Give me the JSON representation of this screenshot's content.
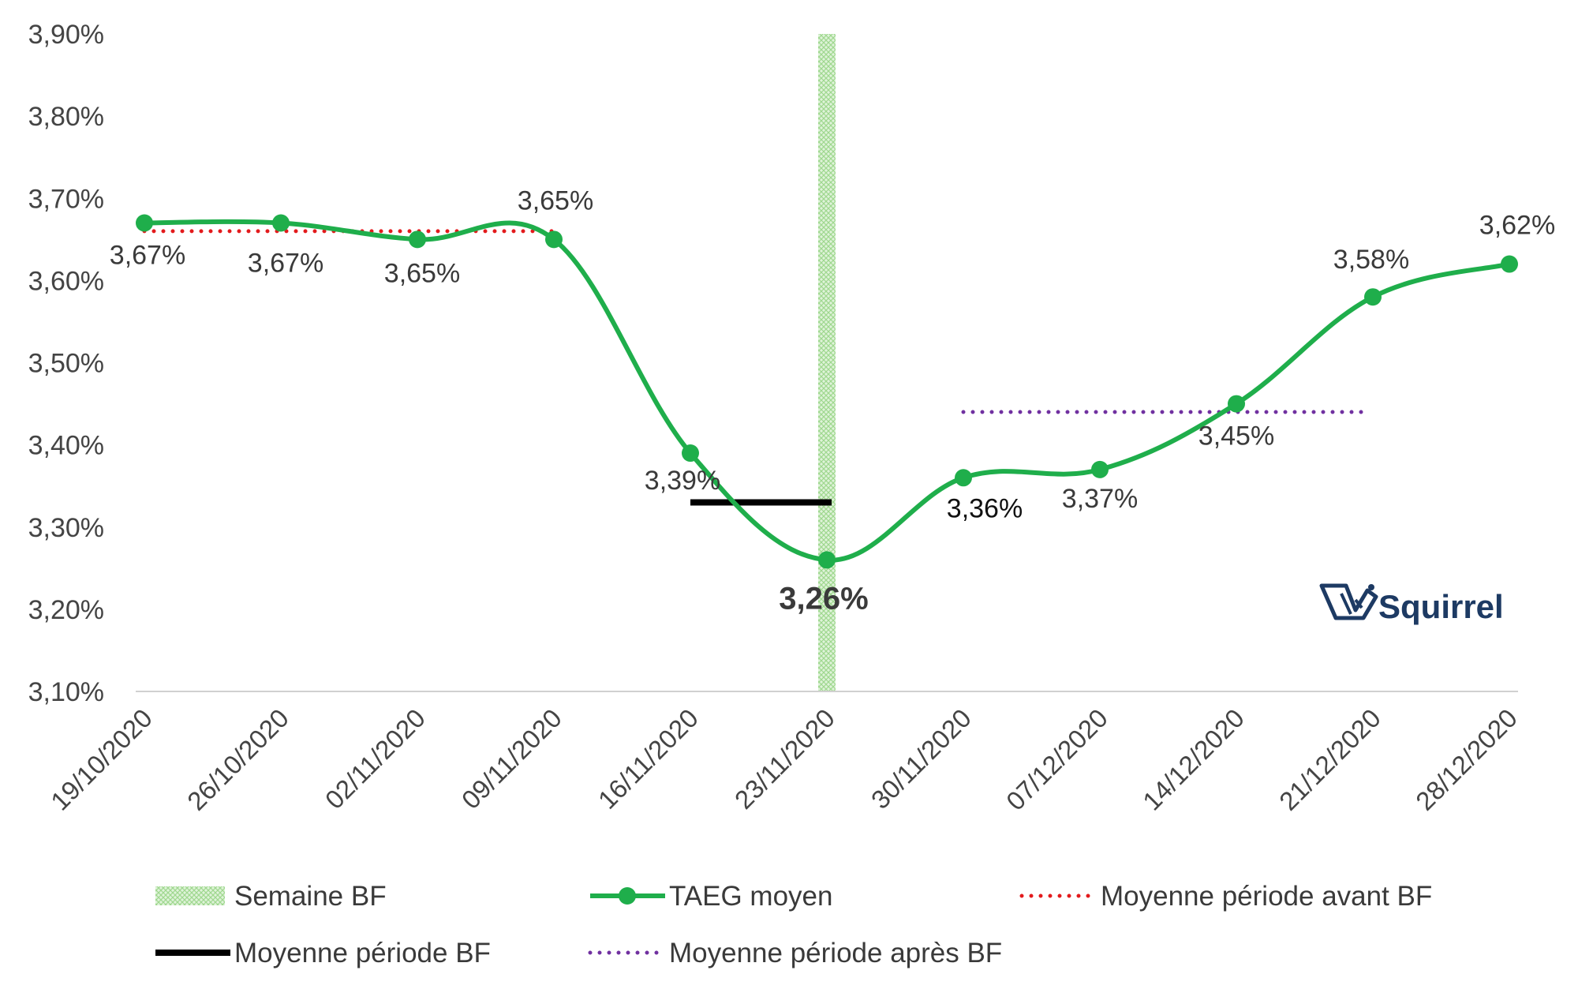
{
  "chart_data": {
    "type": "line",
    "title": "",
    "xlabel": "",
    "ylabel": "",
    "ylim": [
      3.1,
      3.9
    ],
    "yticks": [
      3.1,
      3.2,
      3.3,
      3.4,
      3.5,
      3.6,
      3.7,
      3.8,
      3.9
    ],
    "ytick_labels": [
      "3,10%",
      "3,20%",
      "3,30%",
      "3,40%",
      "3,50%",
      "3,60%",
      "3,70%",
      "3,80%",
      "3,90%"
    ],
    "categories": [
      "19/10/2020",
      "26/10/2020",
      "02/11/2020",
      "09/11/2020",
      "16/11/2020",
      "23/11/2020",
      "30/11/2020",
      "07/12/2020",
      "14/12/2020",
      "21/12/2020",
      "28/12/2020"
    ],
    "series": [
      {
        "name": "TAEG moyen",
        "values": [
          3.67,
          3.67,
          3.65,
          3.65,
          3.39,
          3.26,
          3.36,
          3.37,
          3.45,
          3.58,
          3.62
        ],
        "labels": [
          "3,67%",
          "3,67%",
          "3,65%",
          "3,65%",
          "3,39%",
          "3,26%",
          "3,36%",
          "3,37%",
          "3,45%",
          "3,58%",
          "3,62%"
        ],
        "color": "#1fae4b",
        "style": "smooth-line-markers"
      },
      {
        "name": "Moyenne période avant BF",
        "value": 3.66,
        "from_index": 0,
        "to_index": 3,
        "color": "#e31a1c",
        "style": "dotted"
      },
      {
        "name": "Moyenne période BF",
        "value": 3.33,
        "from_index": 4,
        "to_index": 5,
        "color": "#000000",
        "style": "solid-thick"
      },
      {
        "name": "Moyenne période après BF",
        "value": 3.44,
        "from_index": 6,
        "to_index": 9,
        "color": "#7030a0",
        "style": "dotted"
      }
    ],
    "highlight": {
      "name": "Semaine BF",
      "index": 5,
      "color": "#8fd17f"
    },
    "legend": [
      {
        "key": "semaine_bf",
        "label": "Semaine BF"
      },
      {
        "key": "taeg",
        "label": "TAEG moyen"
      },
      {
        "key": "avant",
        "label": "Moyenne période avant BF"
      },
      {
        "key": "bf",
        "label": "Moyenne période BF"
      },
      {
        "key": "apres",
        "label": "Moyenne période après BF"
      }
    ],
    "legend_position": "bottom",
    "grid": false
  },
  "brand": {
    "name": "Squirrel",
    "color": "#1d3a63"
  }
}
